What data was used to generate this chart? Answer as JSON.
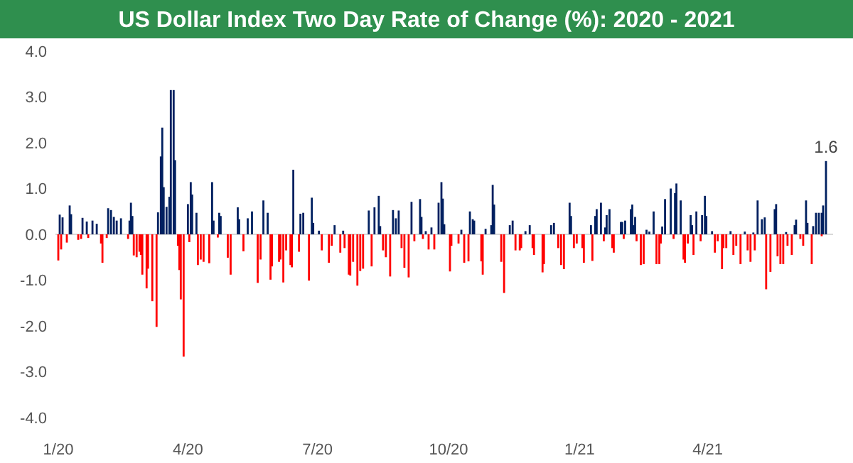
{
  "chart_data": {
    "type": "bar",
    "title": "US Dollar Index Two Day Rate of Change (%): 2020 - 2021",
    "xlim": [
      "2019-12-30",
      "2021-06-28"
    ],
    "xticks": [
      {
        "value": "2020-01-01",
        "label": "1/20"
      },
      {
        "value": "2020-04-01",
        "label": "4/20"
      },
      {
        "value": "2020-07-01",
        "label": "7/20"
      },
      {
        "value": "2020-10-01",
        "label": "10/20"
      },
      {
        "value": "2021-01-01",
        "label": "1/21"
      },
      {
        "value": "2021-04-01",
        "label": "4/21"
      }
    ],
    "ylim": [
      -4,
      4
    ],
    "yticks": [
      {
        "value": -4,
        "label": "-4.0"
      },
      {
        "value": -3,
        "label": "-3.0"
      },
      {
        "value": -2,
        "label": "-2.0"
      },
      {
        "value": -1,
        "label": "-1.0"
      },
      {
        "value": 0,
        "label": "0.0"
      },
      {
        "value": 1,
        "label": "1.0"
      },
      {
        "value": 2,
        "label": "2.0"
      },
      {
        "value": 3,
        "label": "3.0"
      },
      {
        "value": 4,
        "label": "4.0"
      }
    ],
    "annotations": [
      {
        "text": "1.6",
        "x": "2021-06-23",
        "y": 1.6
      }
    ],
    "series": [
      {
        "color": "#002060",
        "x": [
          "2020-01-02",
          "2020-01-04",
          "2020-01-09",
          "2020-01-10",
          "2020-01-18",
          "2020-01-21",
          "2020-01-25",
          "2020-01-28",
          "2020-02-05",
          "2020-02-07",
          "2020-02-09",
          "2020-02-11",
          "2020-02-14",
          "2020-02-20",
          "2020-02-21",
          "2020-02-22",
          "2020-03-11",
          "2020-03-13",
          "2020-03-14",
          "2020-03-15",
          "2020-03-17",
          "2020-03-19",
          "2020-03-20",
          "2020-03-22",
          "2020-03-23",
          "2020-04-01",
          "2020-04-03",
          "2020-04-04",
          "2020-04-07",
          "2020-04-18",
          "2020-04-19",
          "2020-04-23",
          "2020-04-24",
          "2020-05-06",
          "2020-05-07",
          "2020-05-13",
          "2020-05-16",
          "2020-05-24",
          "2020-05-27",
          "2020-06-14",
          "2020-06-19",
          "2020-06-21",
          "2020-06-27",
          "2020-06-28",
          "2020-07-02",
          "2020-07-13",
          "2020-07-19",
          "2020-08-06",
          "2020-08-10",
          "2020-08-13",
          "2020-08-14",
          "2020-08-23",
          "2020-08-25",
          "2020-08-27",
          "2020-09-05",
          "2020-09-11",
          "2020-09-12",
          "2020-09-15",
          "2020-09-19",
          "2020-09-24",
          "2020-09-26",
          "2020-09-27",
          "2020-09-28",
          "2020-10-10",
          "2020-10-16",
          "2020-10-18",
          "2020-10-19",
          "2020-10-27",
          "2020-10-31",
          "2020-11-01",
          "2020-11-02",
          "2020-11-13",
          "2020-11-15",
          "2020-11-24",
          "2020-11-27",
          "2020-12-12",
          "2020-12-14",
          "2020-12-25",
          "2020-12-26",
          "2021-01-09",
          "2021-01-12",
          "2021-01-13",
          "2021-01-16",
          "2021-01-19",
          "2021-01-20",
          "2021-01-22",
          "2021-01-30",
          "2021-01-31",
          "2021-02-02",
          "2021-02-06",
          "2021-02-07",
          "2021-02-08",
          "2021-02-09",
          "2021-02-17",
          "2021-02-19",
          "2021-02-22",
          "2021-02-28",
          "2021-03-02",
          "2021-03-06",
          "2021-03-09",
          "2021-03-10",
          "2021-03-13",
          "2021-03-20",
          "2021-03-21",
          "2021-03-24",
          "2021-03-28",
          "2021-03-30",
          "2021-03-31",
          "2021-04-04",
          "2021-04-17",
          "2021-04-27",
          "2021-05-03",
          "2021-05-06",
          "2021-05-09",
          "2021-05-11",
          "2021-05-18",
          "2021-05-19",
          "2021-05-26",
          "2021-06-01",
          "2021-06-02",
          "2021-06-09",
          "2021-06-10",
          "2021-06-14",
          "2021-06-16",
          "2021-06-18",
          "2021-06-20",
          "2021-06-21",
          "2021-06-23"
        ],
        "values": [
          0.43,
          0.37,
          0.63,
          0.44,
          0.36,
          0.28,
          0.3,
          0.23,
          0.57,
          0.53,
          0.38,
          0.3,
          0.35,
          0.3,
          0.69,
          0.4,
          0.48,
          1.7,
          2.33,
          1.03,
          0.6,
          0.82,
          3.15,
          3.15,
          1.62,
          0.66,
          1.14,
          0.87,
          0.47,
          1.14,
          0.3,
          0.47,
          0.4,
          0.59,
          0.33,
          0.35,
          0.5,
          0.74,
          0.47,
          1.41,
          0.45,
          0.47,
          0.8,
          0.25,
          0.08,
          0.2,
          0.08,
          0.52,
          0.59,
          0.84,
          0.18,
          0.53,
          0.35,
          0.52,
          0.71,
          0.77,
          0.38,
          0.07,
          0.15,
          0.69,
          1.14,
          0.78,
          0.22,
          0.1,
          0.5,
          0.33,
          0.3,
          0.12,
          0.2,
          1.08,
          0.65,
          0.2,
          0.3,
          0.07,
          0.2,
          0.2,
          0.25,
          0.69,
          0.4,
          0.2,
          0.4,
          0.55,
          0.69,
          0.15,
          0.42,
          0.55,
          0.27,
          0.27,
          0.3,
          0.55,
          0.65,
          0.2,
          0.38,
          0.1,
          0.06,
          0.5,
          0.17,
          0.77,
          1.0,
          0.9,
          1.11,
          0.74,
          0.42,
          0.2,
          0.5,
          0.42,
          0.84,
          0.4,
          0.07,
          0.07,
          0.06,
          0.04,
          0.74,
          0.33,
          0.37,
          0.55,
          0.66,
          0.05,
          0.2,
          0.32,
          0.74,
          0.25,
          0.18,
          0.47,
          0.47,
          0.47,
          0.63,
          1.6
        ]
      },
      {
        "color": "#ff0000",
        "x": [
          "2020-01-01",
          "2020-01-03",
          "2020-01-07",
          "2020-01-15",
          "2020-01-17",
          "2020-01-22",
          "2020-01-31",
          "2020-02-01",
          "2020-02-04",
          "2020-02-19",
          "2020-02-23",
          "2020-02-25",
          "2020-02-27",
          "2020-02-28",
          "2020-02-29",
          "2020-03-03",
          "2020-03-04",
          "2020-03-07",
          "2020-03-10",
          "2020-03-25",
          "2020-03-26",
          "2020-03-27",
          "2020-03-29",
          "2020-04-02",
          "2020-04-08",
          "2020-04-10",
          "2020-04-12",
          "2020-04-16",
          "2020-04-22",
          "2020-04-29",
          "2020-05-01",
          "2020-05-10",
          "2020-05-20",
          "2020-05-22",
          "2020-05-29",
          "2020-05-30",
          "2020-06-04",
          "2020-06-05",
          "2020-06-07",
          "2020-06-09",
          "2020-06-12",
          "2020-06-13",
          "2020-06-18",
          "2020-06-25",
          "2020-07-04",
          "2020-07-09",
          "2020-07-11",
          "2020-07-17",
          "2020-07-20",
          "2020-07-23",
          "2020-07-24",
          "2020-07-26",
          "2020-07-29",
          "2020-07-31",
          "2020-08-02",
          "2020-08-08",
          "2020-08-16",
          "2020-08-18",
          "2020-08-21",
          "2020-08-29",
          "2020-08-31",
          "2020-09-03",
          "2020-09-07",
          "2020-09-13",
          "2020-09-17",
          "2020-09-21",
          "2020-10-02",
          "2020-10-03",
          "2020-10-08",
          "2020-10-12",
          "2020-10-15",
          "2020-10-24",
          "2020-10-25",
          "2020-11-07",
          "2020-11-09",
          "2020-11-17",
          "2020-11-20",
          "2020-11-21",
          "2020-11-29",
          "2020-11-30",
          "2020-12-06",
          "2020-12-07",
          "2020-12-17",
          "2020-12-19",
          "2020-12-21",
          "2020-12-28",
          "2020-12-30",
          "2021-01-03",
          "2021-01-04",
          "2021-01-10",
          "2021-01-18",
          "2021-01-24",
          "2021-01-25",
          "2021-02-01",
          "2021-02-10",
          "2021-02-13",
          "2021-02-15",
          "2021-02-24",
          "2021-02-26",
          "2021-02-27",
          "2021-03-08",
          "2021-03-15",
          "2021-03-16",
          "2021-03-18",
          "2021-03-22",
          "2021-03-27",
          "2021-04-06",
          "2021-04-08",
          "2021-04-11",
          "2021-04-12",
          "2021-04-14",
          "2021-04-19",
          "2021-04-21",
          "2021-04-24",
          "2021-04-29",
          "2021-05-01",
          "2021-05-04",
          "2021-05-12",
          "2021-05-15",
          "2021-05-20",
          "2021-05-22",
          "2021-05-24",
          "2021-05-27",
          "2021-05-30",
          "2021-06-05",
          "2021-06-07",
          "2021-06-13",
          "2021-06-20"
        ],
        "values": [
          -0.57,
          -0.33,
          -0.18,
          -0.12,
          -0.1,
          -0.08,
          -0.2,
          -0.62,
          -0.08,
          -0.1,
          -0.46,
          -0.5,
          -0.38,
          -0.45,
          -0.88,
          -1.18,
          -0.75,
          -1.46,
          -2.02,
          -0.25,
          -0.78,
          -1.42,
          -2.67,
          -0.17,
          -0.67,
          -0.55,
          -0.6,
          -0.63,
          -0.07,
          -0.51,
          -0.88,
          -0.37,
          -1.06,
          -0.55,
          -0.99,
          -0.7,
          -0.6,
          -0.55,
          -1.05,
          -0.35,
          -0.67,
          -0.72,
          -0.38,
          -1.01,
          -0.35,
          -0.62,
          -0.25,
          -0.4,
          -0.3,
          -0.88,
          -0.9,
          -0.6,
          -1.12,
          -0.8,
          -0.75,
          -0.7,
          -0.35,
          -0.5,
          -0.92,
          -0.3,
          -0.73,
          -0.94,
          -0.15,
          -0.1,
          -0.33,
          -0.33,
          -0.81,
          -0.25,
          -0.2,
          -0.62,
          -0.59,
          -0.59,
          -0.88,
          -0.6,
          -1.28,
          -0.35,
          -0.35,
          -0.3,
          -0.3,
          -0.45,
          -0.83,
          -0.65,
          -0.3,
          -0.67,
          -0.76,
          -0.3,
          -0.2,
          -0.3,
          -0.62,
          -0.58,
          -0.15,
          -0.3,
          -0.4,
          -0.1,
          -0.15,
          -0.67,
          -0.65,
          -0.65,
          -0.65,
          -0.2,
          -0.1,
          -0.55,
          -0.62,
          -0.2,
          -0.45,
          -0.15,
          -0.4,
          -0.15,
          -0.76,
          -0.3,
          -0.3,
          -0.45,
          -0.25,
          -0.65,
          -0.35,
          -0.6,
          -0.35,
          -1.2,
          -0.82,
          -0.48,
          -0.65,
          -0.65,
          -0.25,
          -0.45,
          -0.1,
          -0.25,
          -0.65,
          -0.04
        ]
      }
    ]
  }
}
